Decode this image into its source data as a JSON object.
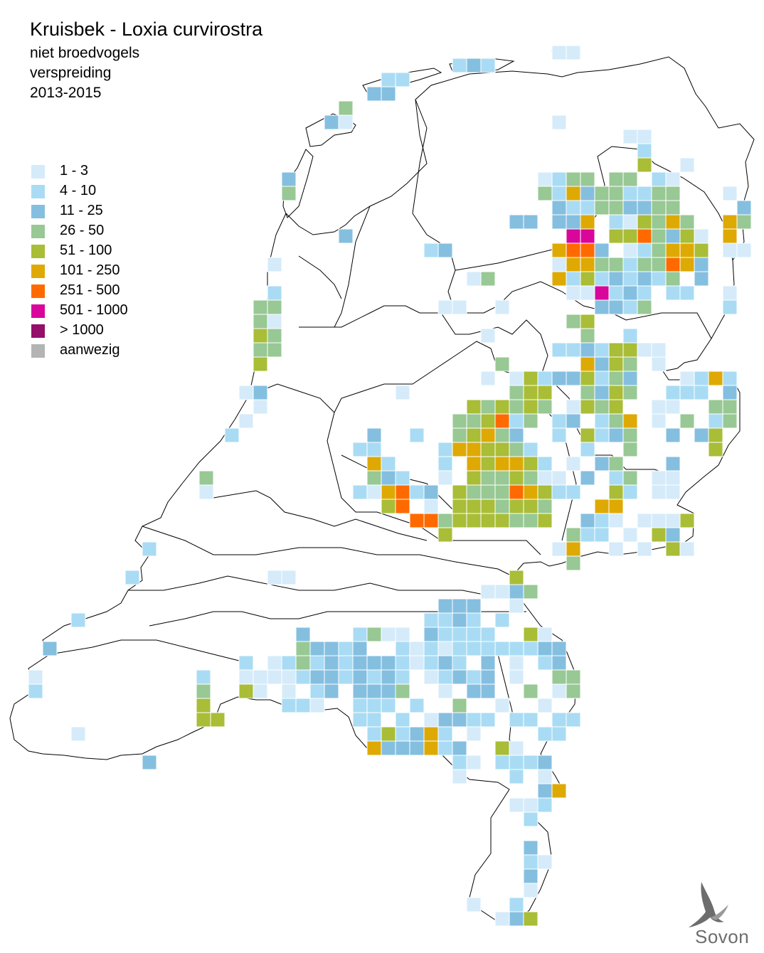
{
  "map": {
    "title": "Kruisbek - Loxia curvirostra",
    "subtitle_lines": [
      "niet broedvogels",
      "verspreiding",
      "2013-2015"
    ],
    "legend": [
      {
        "label": "1 - 3",
        "color": "#d5ebfa"
      },
      {
        "label": "4 - 10",
        "color": "#a9dcf4"
      },
      {
        "label": "11 - 25",
        "color": "#85bfe0"
      },
      {
        "label": "26 - 50",
        "color": "#98c894"
      },
      {
        "label": "51 - 100",
        "color": "#a9bd37"
      },
      {
        "label": "101 - 250",
        "color": "#dfa904"
      },
      {
        "label": "251 - 500",
        "color": "#ff6a00"
      },
      {
        "label": "501 - 1000",
        "color": "#d9069c"
      },
      {
        "label": "> 1000",
        "color": "#940e6a"
      },
      {
        "label": "aanwezig",
        "color": "#b4b4b4"
      }
    ],
    "logo_text": "Sovon"
  }
}
